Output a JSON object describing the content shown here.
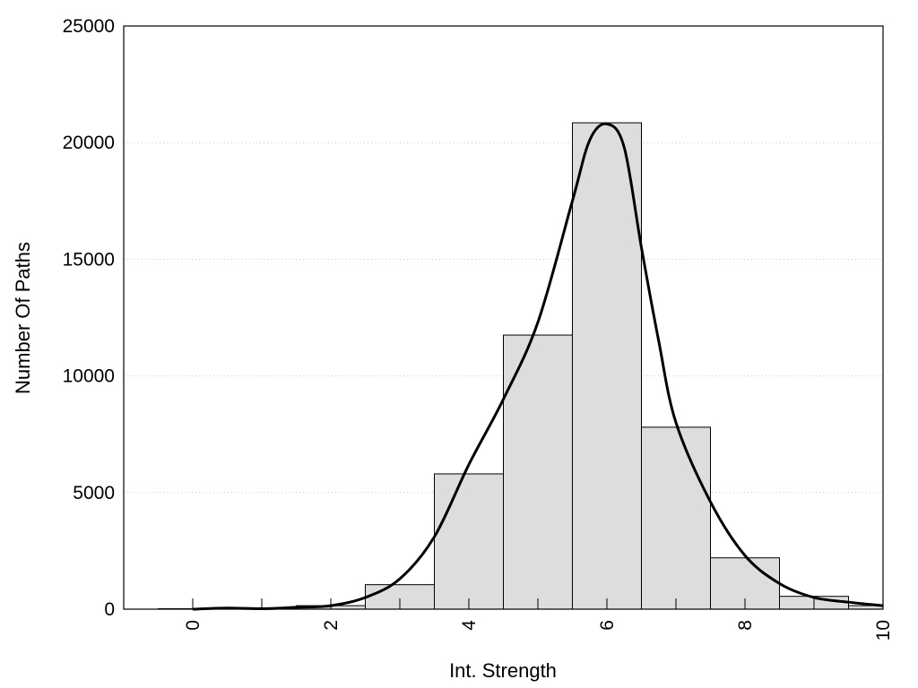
{
  "chart_data": {
    "type": "bar",
    "title": "",
    "xlabel": "Int. Strength",
    "ylabel": "Number Of Paths",
    "xlim": [
      -1,
      10
    ],
    "ylim": [
      0,
      25000
    ],
    "xticks": [
      "0",
      "2",
      "4",
      "6",
      "8",
      "10"
    ],
    "yticks": [
      "0",
      "5000",
      "10000",
      "15000",
      "20000",
      "25000"
    ],
    "grid": "horizontal dotted",
    "legend": "none",
    "bar_color": "#dddddd",
    "line_color": "#000000",
    "bins": [
      {
        "x0": -0.5,
        "x1": 0.5,
        "value": 20
      },
      {
        "x0": 0.5,
        "x1": 1.5,
        "value": 60
      },
      {
        "x0": 1.5,
        "x1": 2.5,
        "value": 150
      },
      {
        "x0": 2.5,
        "x1": 3.5,
        "value": 1050
      },
      {
        "x0": 3.5,
        "x1": 4.5,
        "value": 5800
      },
      {
        "x0": 4.5,
        "x1": 5.5,
        "value": 11750
      },
      {
        "x0": 5.5,
        "x1": 6.5,
        "value": 20850
      },
      {
        "x0": 6.5,
        "x1": 7.5,
        "value": 7800
      },
      {
        "x0": 7.5,
        "x1": 8.5,
        "value": 2200
      },
      {
        "x0": 8.5,
        "x1": 9.5,
        "value": 550
      },
      {
        "x0": 9.5,
        "x1": 10.5,
        "value": 150
      }
    ],
    "curve": {
      "x": [
        0,
        0.5,
        1,
        1.5,
        2,
        2.5,
        3,
        3.5,
        4,
        4.5,
        5,
        5.5,
        5.75,
        6,
        6.25,
        6.5,
        6.75,
        7,
        7.5,
        8,
        8.5,
        9,
        9.5,
        10
      ],
      "y": [
        0,
        50,
        20,
        80,
        150,
        500,
        1300,
        3100,
        6200,
        9000,
        12300,
        17500,
        20100,
        20800,
        19800,
        15500,
        11500,
        8000,
        4600,
        2300,
        1100,
        500,
        300,
        150
      ]
    }
  }
}
